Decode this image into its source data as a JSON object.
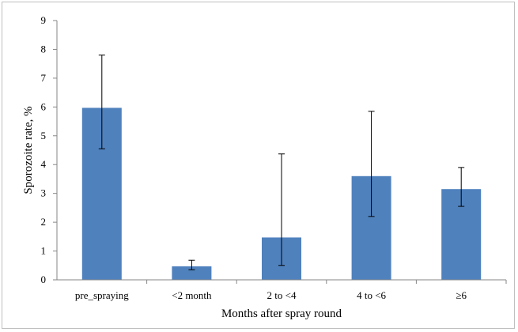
{
  "chart_data": {
    "type": "bar",
    "title": "",
    "xlabel": "Months after spray round",
    "ylabel": "Sporozoite rate, %",
    "ylim": [
      0,
      9
    ],
    "yticks": [
      0,
      1,
      2,
      3,
      4,
      5,
      6,
      7,
      8,
      9
    ],
    "categories": [
      "pre_spraying",
      "<2 month",
      "2 to <4",
      "4 to <6",
      "≥6"
    ],
    "series": [
      {
        "values": [
          5.97,
          0.47,
          1.47,
          3.6,
          3.15
        ],
        "error_low": [
          4.55,
          0.35,
          0.5,
          2.2,
          2.55
        ],
        "error_high": [
          7.8,
          0.68,
          4.37,
          5.85,
          3.9
        ]
      }
    ],
    "bar_color": "#4f81bd",
    "grid": false,
    "legend": "none"
  }
}
